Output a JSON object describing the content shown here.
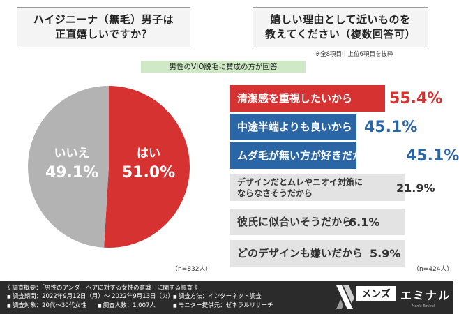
{
  "left_question": {
    "lines": [
      "ハイジニーナ（無毛）男子は",
      "正直嬉しいですか？"
    ]
  },
  "right_question": {
    "lines": [
      "嬉しい理由として近いものを",
      "教えてください（複数回答可）"
    ]
  },
  "right_note": "※全8項目中上位6項目を抜粋",
  "subtitle": "男性のVIO脱毛に賛成の方が回答",
  "sample_left": "（n=832人）",
  "sample_right": "（n=424人）",
  "colors": {
    "red": "#d63232",
    "blue": "#2a65a6",
    "gray": "#b3b3b3",
    "green": "#cfe9c6"
  },
  "chart_data": [
    {
      "type": "pie",
      "slices": [
        {
          "label": "はい",
          "value": 51.0,
          "display": "51.0%",
          "color": "#d63232"
        },
        {
          "label": "いいえ",
          "value": 49.1,
          "display": "49.1%",
          "color": "#b3b3b3"
        }
      ]
    },
    {
      "type": "bar",
      "orientation": "horizontal",
      "categories": [
        "清潔感を重視したいから",
        "中途半端よりも良いから",
        "ムダ毛が無い方が好きだから",
        "デザインだとムレやニオイ対策にならなさそうだから",
        "彼氏に似合いそうだから",
        "どのデザインも嫌いだから"
      ],
      "category_lines": [
        [
          "清潔感を重視したいから"
        ],
        [
          "中途半端よりも良いから"
        ],
        [
          "ムダ毛が無い方が好きだから"
        ],
        [
          "デザインだとムレやニオイ対策に",
          "ならなさそうだから"
        ],
        [
          "彼氏に似合いそうだから"
        ],
        [
          "どのデザインも嫌いだから"
        ]
      ],
      "values": [
        55.4,
        45.1,
        45.1,
        21.9,
        6.1,
        5.9
      ],
      "value_labels": [
        "55.4%",
        "45.1%",
        "45.1%",
        "21.9%",
        "6.1%",
        "5.9%"
      ],
      "colors": [
        "#d63232",
        "#2a65a6",
        "#2a65a6",
        "#e3e3e3",
        "#e3e3e3",
        "#e3e3e3"
      ]
    }
  ],
  "footer": {
    "title": "《 調査概要：「男性のアンダーヘアに対する女性の意識」に関する調査 》",
    "items": [
      "調査期間：2022年9月12日（月）〜 2022年9月13日（火）",
      "調査方法：インターネット調査",
      "調査対象：20代〜30代女性",
      "調査人数：1,007人",
      "モニター提供元：ゼネラルリサーチ"
    ]
  },
  "logo": {
    "part_a": "メンズ",
    "part_b": "エミナル",
    "tagline": "Men's Eminal"
  }
}
